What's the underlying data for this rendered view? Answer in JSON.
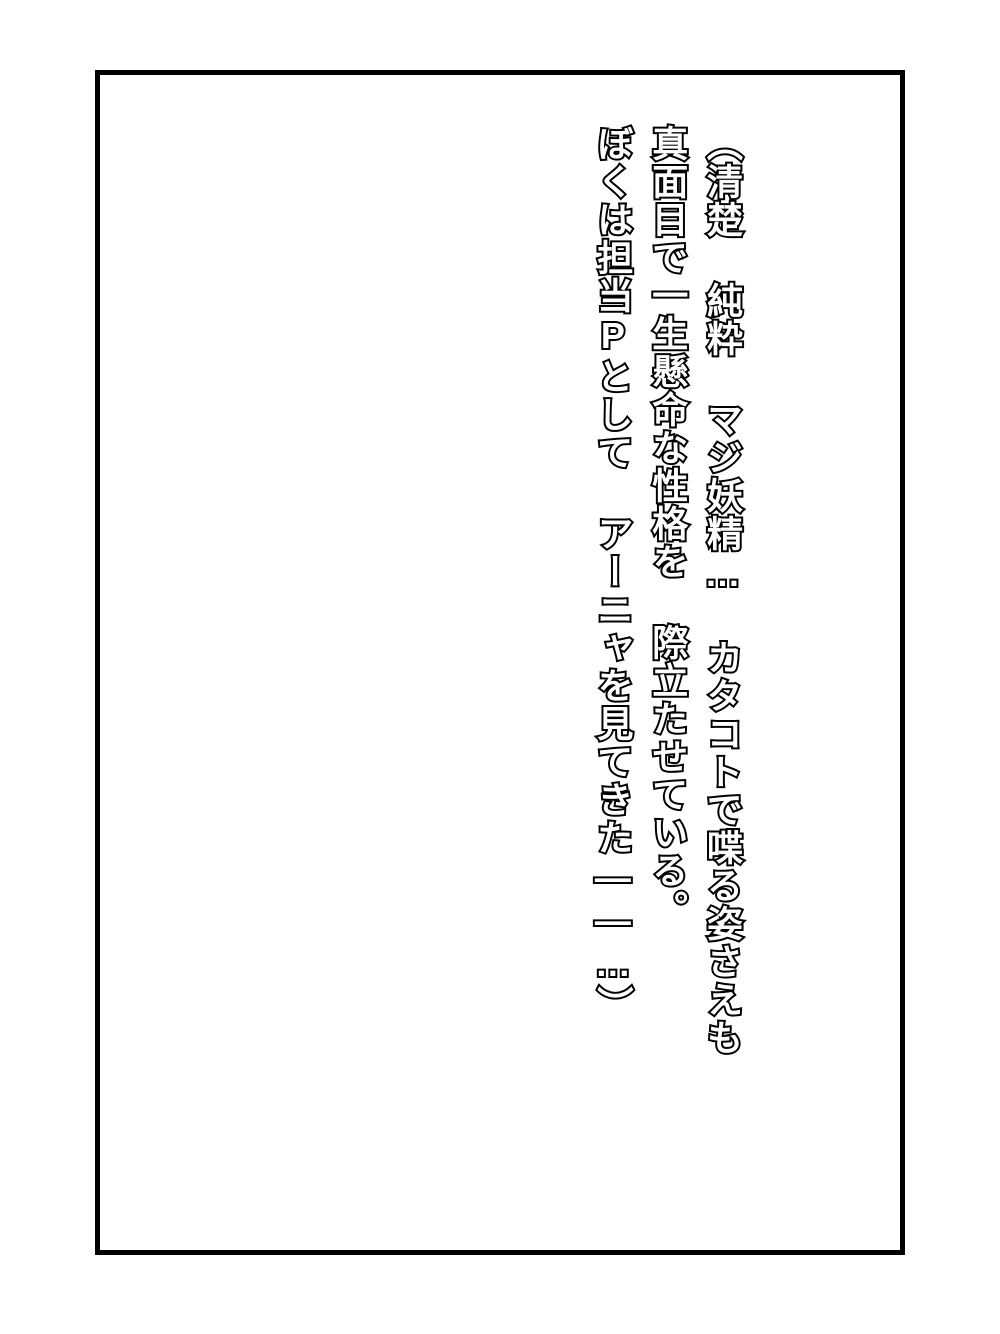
{
  "page": {
    "background_color": "#ffffff",
    "frame_border_color": "#000000",
    "frame_border_width": 5,
    "text_color": "#ffffff",
    "text_stroke_color": "#000000",
    "text_stroke_width": 4,
    "font_size": 36,
    "font_weight": 900
  },
  "lines": {
    "line1": "（清楚 純粋 マジ妖精… カタコトで喋る姿さえも",
    "line2": "真面目で一生懸命な性格を 際立たせている。",
    "line3": "ぼくは担当Pとして アーニャを見てきた――…）"
  }
}
